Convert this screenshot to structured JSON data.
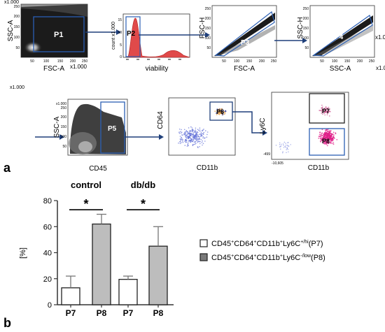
{
  "panel_a": {
    "label": "a",
    "scale_note": "x1.000",
    "plots": [
      {
        "gate": "P1",
        "x_label": "FSC-A",
        "y_label": "SSC-A",
        "x_scale": "x1.000",
        "y_scale": "x1.000",
        "x_ticks": [
          "50",
          "100",
          "150",
          "200",
          "250"
        ],
        "y_ticks": [
          "50",
          "100",
          "150",
          "200",
          "250"
        ]
      },
      {
        "gate": "P2",
        "x_label": "viability",
        "y_label": "count x1.000",
        "y_ticks": [
          "0",
          "5",
          "10",
          "15"
        ]
      },
      {
        "gate": "P3",
        "x_label": "FSC-A",
        "y_label": "FSC-H",
        "x_ticks": [
          "50",
          "100",
          "150",
          "200",
          "250"
        ],
        "y_ticks": [
          "50",
          "100",
          "150",
          "200",
          "250"
        ]
      },
      {
        "gate": "P4",
        "x_label": "SSC-A",
        "y_label": "SSC-H",
        "x_scale": "x1.000",
        "y_scale": "x1.000",
        "x_ticks": [
          "50",
          "100",
          "150",
          "200",
          "250"
        ],
        "y_ticks": [
          "50",
          "100",
          "150",
          "200",
          "250"
        ]
      },
      {
        "gate": "P5",
        "x_label": "CD45",
        "y_label": "SSC-A",
        "y_scale": "x1.000",
        "y_ticks": [
          "50",
          "100",
          "150",
          "200",
          "250"
        ]
      },
      {
        "gate": "P6",
        "x_label": "CD11b",
        "y_label": "CD64"
      },
      {
        "gates": [
          "P7",
          "P8"
        ],
        "x_label": "CD11b",
        "y_label": "Ly6C",
        "corner_tick": "-10,605",
        "side_tick": "-499"
      }
    ]
  },
  "panel_b": {
    "label": "b",
    "chart_data": {
      "type": "bar",
      "group_labels": [
        "control",
        "db/db"
      ],
      "categories": [
        "P7",
        "P8",
        "P7",
        "P8"
      ],
      "values": [
        13,
        62,
        19.5,
        45
      ],
      "errors": [
        9,
        7.5,
        2.5,
        15
      ],
      "ylabel": "[%]",
      "ylim": [
        0,
        80
      ],
      "yticks": [
        0,
        20,
        40,
        60,
        80
      ],
      "significance": [
        {
          "group": "control",
          "label": "*"
        },
        {
          "group": "db/db",
          "label": "*"
        }
      ],
      "fill_colors": {
        "P7": "#ffffff",
        "P8": "#bdbdbd"
      },
      "legend": [
        {
          "key": "P7",
          "base": "CD45",
          "sup1": "+",
          "m1": "CD64",
          "sup2": "+",
          "m2": "CD11b",
          "sup3": "+",
          "m3": "Ly6C",
          "sup4": "+/hi",
          "tail": "(P7)"
        },
        {
          "key": "P8",
          "base": "CD45",
          "sup1": "+",
          "m1": "CD64",
          "sup2": "+",
          "m2": "CD11b",
          "sup3": "+",
          "m3": "Ly6C",
          "sup4": "-/low",
          "tail": "(P8)"
        }
      ]
    }
  }
}
